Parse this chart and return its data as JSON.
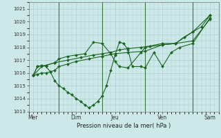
{
  "xlabel": "Pression niveau de la mer( hPa )",
  "bg_color": "#cce8e8",
  "grid_color": "#aacfcf",
  "line_color": "#1a6620",
  "vline_color": "#3a7a40",
  "ylim": [
    1013,
    1021.5
  ],
  "yticks": [
    1013,
    1014,
    1015,
    1016,
    1017,
    1018,
    1019,
    1020,
    1021
  ],
  "xlim": [
    0,
    22
  ],
  "xtick_labels": [
    "Mer",
    "Dim",
    "Jeu",
    "Ven",
    "Sam"
  ],
  "xtick_positions": [
    0.5,
    5.5,
    10.0,
    15.5,
    21.0
  ],
  "vline_positions": [
    3.5,
    8.5,
    13.5,
    19.0
  ],
  "series": [
    {
      "x": [
        0.5,
        1.0,
        1.5,
        2.0,
        2.5,
        3.0,
        3.5,
        4.5,
        5.5,
        7.0,
        8.5,
        10.0,
        11.5,
        13.5,
        15.5,
        17.0,
        19.0,
        21.0
      ],
      "y": [
        1015.8,
        1015.9,
        1016.0,
        1016.0,
        1016.1,
        1016.2,
        1016.5,
        1016.7,
        1016.9,
        1017.1,
        1017.3,
        1017.5,
        1017.6,
        1017.7,
        1018.2,
        1018.3,
        1019.2,
        1020.5
      ]
    },
    {
      "x": [
        0.5,
        1.0,
        1.5,
        2.0,
        2.5,
        3.0,
        3.5,
        4.0,
        4.5,
        5.0,
        5.5,
        6.0,
        6.5,
        7.0,
        7.5,
        8.0,
        8.5,
        9.0,
        9.5,
        10.0,
        10.5,
        11.0,
        11.5,
        12.0,
        13.0,
        13.5,
        14.5,
        15.5,
        16.5,
        17.5,
        19.0,
        21.0
      ],
      "y": [
        1015.8,
        1016.5,
        1016.6,
        1016.5,
        1016.1,
        1015.4,
        1015.0,
        1014.8,
        1014.5,
        1014.3,
        1014.0,
        1013.8,
        1013.5,
        1013.3,
        1013.5,
        1013.8,
        1014.2,
        1015.0,
        1016.2,
        1017.4,
        1018.4,
        1018.3,
        1017.8,
        1016.5,
        1016.5,
        1016.4,
        1017.6,
        1016.5,
        1017.6,
        1018.0,
        1018.3,
        1020.3
      ]
    },
    {
      "x": [
        0.5,
        1.0,
        2.0,
        3.0,
        3.5,
        4.5,
        5.5,
        6.5,
        7.5,
        8.5,
        9.5,
        10.0,
        10.5,
        11.5,
        13.0,
        13.5,
        15.5,
        17.0,
        19.0,
        21.0
      ],
      "y": [
        1015.8,
        1016.5,
        1016.6,
        1016.8,
        1017.1,
        1017.3,
        1017.4,
        1017.5,
        1018.4,
        1018.3,
        1017.5,
        1016.9,
        1016.5,
        1016.4,
        1017.6,
        1018.0,
        1018.2,
        1018.3,
        1018.5,
        1020.2
      ]
    },
    {
      "x": [
        0.5,
        1.5,
        3.0,
        4.5,
        6.0,
        7.5,
        8.5,
        9.5,
        10.5,
        11.5,
        13.0,
        14.0,
        15.5,
        17.0,
        18.0,
        19.0,
        20.0,
        21.0
      ],
      "y": [
        1015.8,
        1016.5,
        1016.8,
        1017.0,
        1017.2,
        1017.4,
        1017.5,
        1017.6,
        1017.8,
        1017.9,
        1018.0,
        1018.1,
        1018.3,
        1018.3,
        1018.8,
        1019.2,
        1019.6,
        1020.5
      ]
    }
  ],
  "marker_size": 2.2,
  "linewidth": 0.8
}
